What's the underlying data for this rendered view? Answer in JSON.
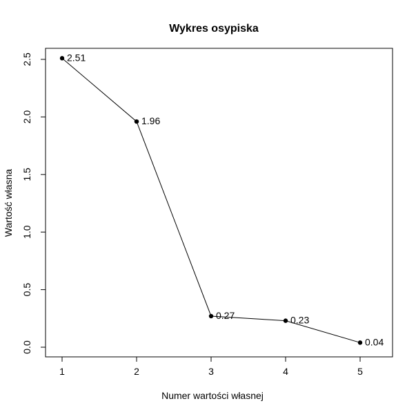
{
  "chart_data": {
    "type": "line",
    "title": "Wykres osypiska",
    "xlabel": "Numer wartości własnej",
    "ylabel": "Wartość własna",
    "x": [
      1,
      2,
      3,
      4,
      5
    ],
    "values": [
      2.51,
      1.96,
      0.27,
      0.23,
      0.04
    ],
    "point_labels": [
      "2.51",
      "1.96",
      "0.27",
      "0.23",
      "0.04"
    ],
    "xticks": [
      1,
      2,
      3,
      4,
      5
    ],
    "xtick_labels": [
      "1",
      "2",
      "3",
      "4",
      "5"
    ],
    "yticks": [
      0.0,
      0.5,
      1.0,
      1.5,
      2.0,
      2.5
    ],
    "ytick_labels": [
      "0.0",
      "0.5",
      "1.0",
      "1.5",
      "2.0",
      "2.5"
    ],
    "xlim": [
      1,
      5
    ],
    "ylim": [
      0.0,
      2.5
    ],
    "grid": false,
    "legend": null,
    "marker": "filled-circle",
    "colors": {
      "line": "#000000",
      "marker": "#000000",
      "text": "#000000",
      "frame": "#000000",
      "background": "#ffffff"
    }
  }
}
